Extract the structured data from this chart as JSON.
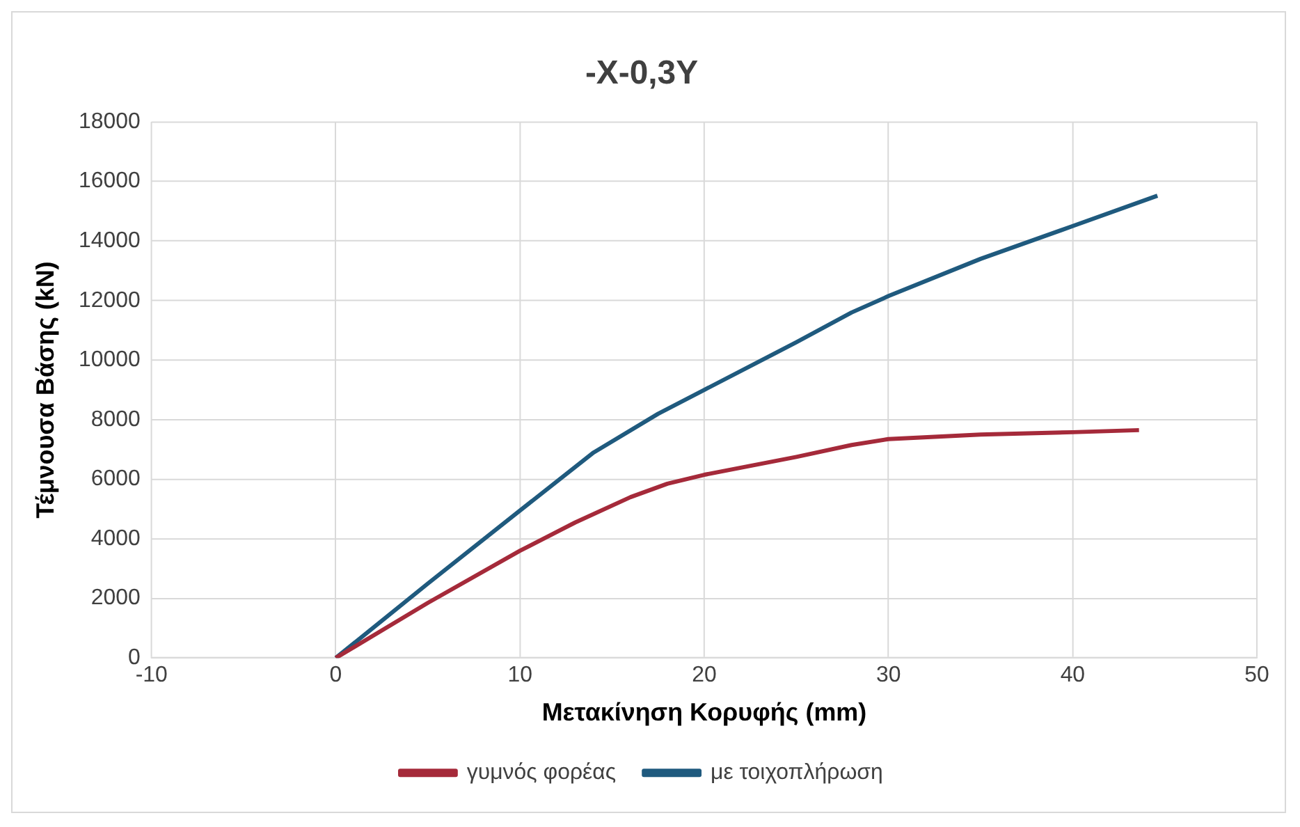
{
  "chart_data": {
    "type": "line",
    "title": "-X-0,3Y",
    "xlabel": "Μετακίνηση Κορυφής (mm)",
    "ylabel": "Τέμνουσα Βάσης (kN)",
    "xlim": [
      -10,
      50
    ],
    "xticks": [
      -10,
      0,
      10,
      20,
      30,
      40,
      50
    ],
    "ylim": [
      0,
      18000
    ],
    "yticks": [
      0,
      2000,
      4000,
      6000,
      8000,
      10000,
      12000,
      14000,
      16000,
      18000
    ],
    "grid": true,
    "legend": "bottom",
    "marker": "none",
    "line_style": "solid",
    "series": [
      {
        "name": "γυμνός φορέας",
        "color": "#a52a3a",
        "x": [
          0,
          5,
          10,
          13,
          16,
          18,
          20,
          25,
          28,
          30,
          35,
          40,
          43.6
        ],
        "values": [
          0,
          1850,
          3600,
          4550,
          5400,
          5850,
          6150,
          6750,
          7150,
          7350,
          7500,
          7580,
          7650
        ]
      },
      {
        "name": "με τοιχοπλήρωση",
        "color": "#1f5a7e",
        "x": [
          0,
          5,
          10,
          14,
          17.5,
          20,
          25,
          28,
          30,
          35,
          40,
          44.6
        ],
        "values": [
          0,
          2500,
          4950,
          6900,
          8200,
          9000,
          10600,
          11600,
          12150,
          13400,
          14500,
          15520
        ]
      }
    ]
  }
}
